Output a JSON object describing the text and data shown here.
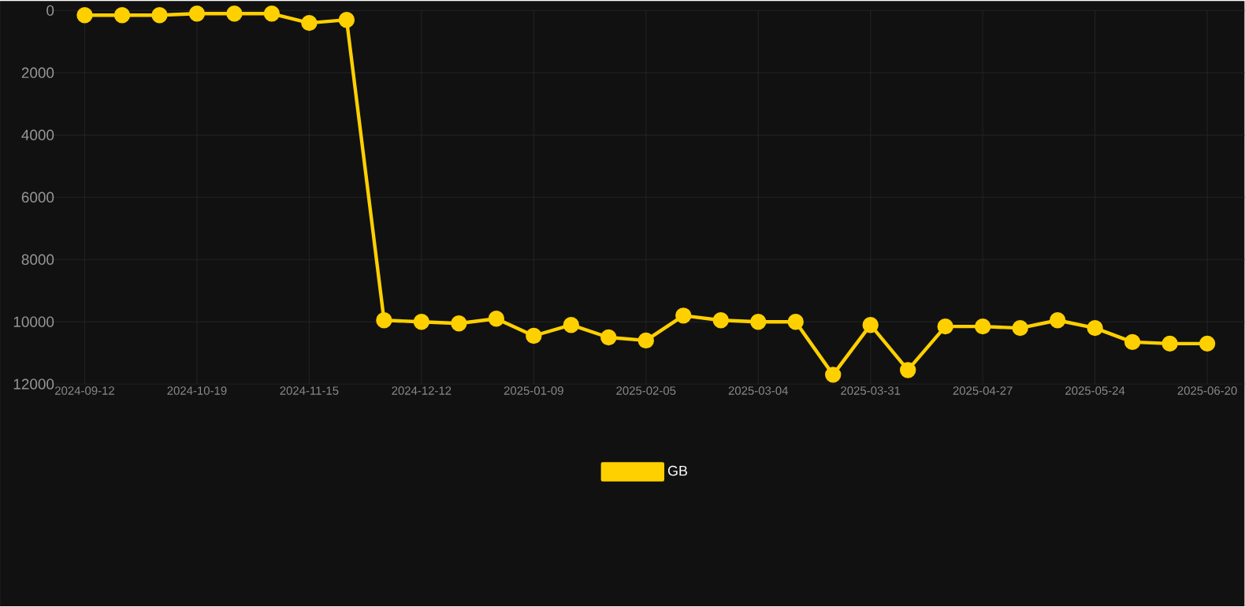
{
  "chart_data": {
    "type": "line",
    "categories": [
      "2024-09-12",
      null,
      null,
      "2024-10-19",
      null,
      null,
      "2024-11-15",
      null,
      null,
      "2024-12-12",
      null,
      null,
      "2025-01-09",
      null,
      null,
      "2025-02-05",
      null,
      null,
      "2025-03-04",
      null,
      null,
      "2025-03-31",
      null,
      null,
      "2025-04-27",
      null,
      null,
      "2025-05-24",
      null,
      null,
      "2025-06-20"
    ],
    "series": [
      {
        "name": "GB",
        "color": "#ffd000",
        "values": [
          150,
          150,
          150,
          100,
          100,
          100,
          400,
          300,
          9950,
          10000,
          10050,
          9900,
          10450,
          10100,
          10500,
          10600,
          9800,
          9950,
          10000,
          10000,
          11700,
          10100,
          11550,
          10150,
          10150,
          10200,
          9950,
          10200,
          10650,
          10700,
          10700
        ]
      }
    ],
    "ylim": [
      12000,
      0
    ],
    "yticks": [
      0,
      2000,
      4000,
      6000,
      8000,
      10000,
      12000
    ],
    "grid": true,
    "legend": "bottom",
    "marker": "circle",
    "line_style": "solid"
  }
}
